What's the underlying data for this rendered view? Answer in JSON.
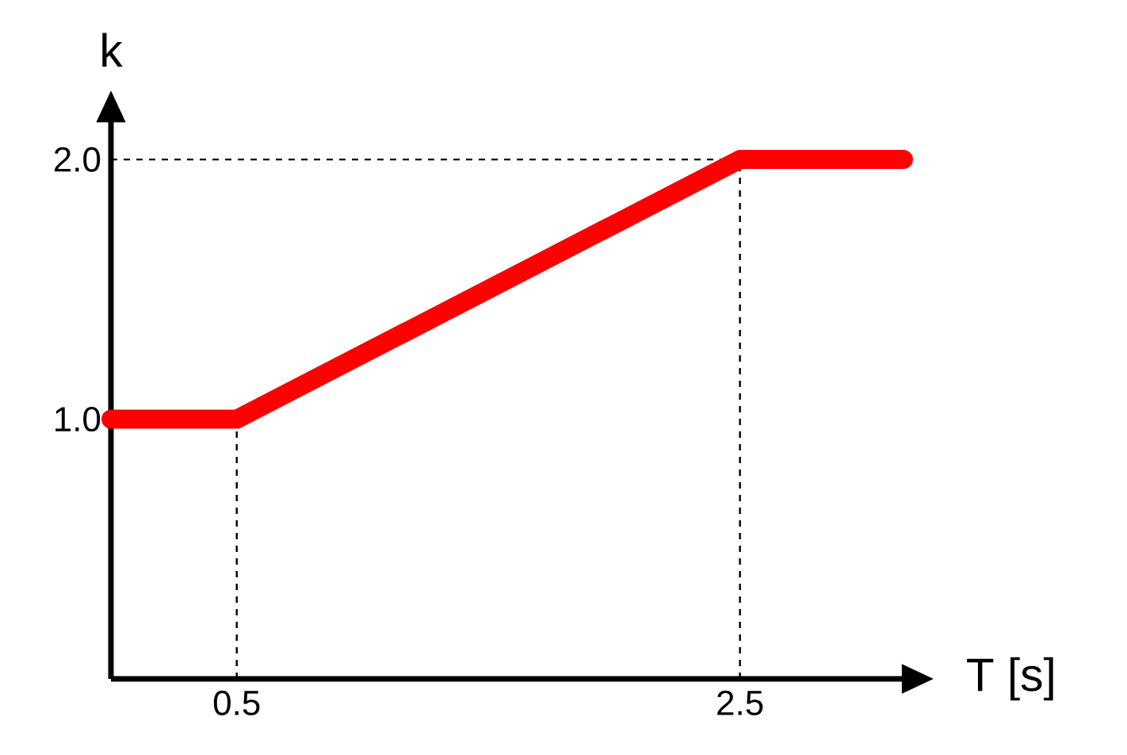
{
  "chart_data": {
    "type": "line",
    "xlabel": "T [s]",
    "ylabel": "k",
    "x": [
      0,
      0.5,
      2.5,
      3.15
    ],
    "series": [
      {
        "color": "#ff0000",
        "values": [
          1.0,
          1.0,
          2.0,
          2.0
        ]
      }
    ],
    "xlim": [
      0,
      3.15
    ],
    "ylim": [
      0,
      2.15
    ],
    "xticks": [
      0.5,
      2.5
    ],
    "yticks": [
      {
        "value": 1.0,
        "label": "1.0"
      },
      {
        "value": 2.0,
        "label": "2.0"
      }
    ],
    "ref_lines": [
      {
        "axis": "x",
        "value": 0.5,
        "line_style": "dashed"
      },
      {
        "axis": "x",
        "value": 2.5,
        "line_style": "dashed"
      },
      {
        "axis": "y",
        "value": 2.0,
        "line_style": "dashed"
      }
    ],
    "marker": "none",
    "line_style": "solid"
  }
}
